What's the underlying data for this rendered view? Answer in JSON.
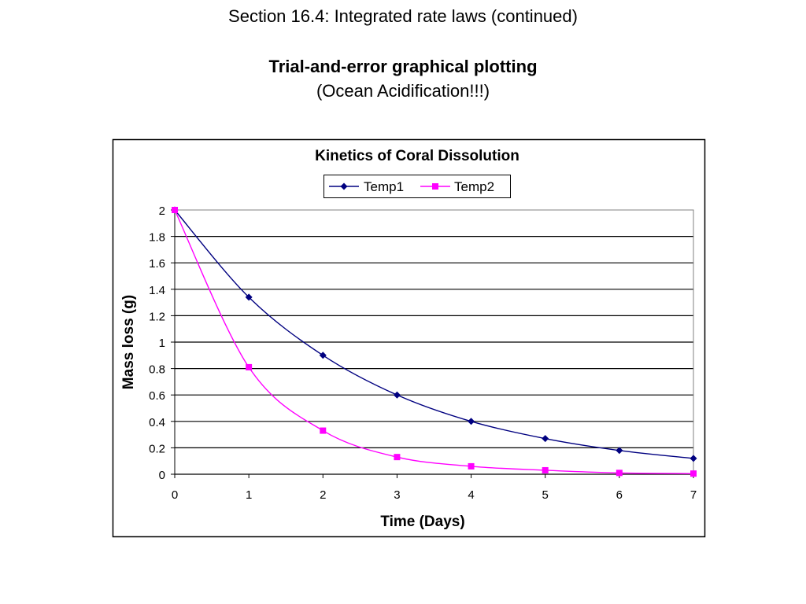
{
  "slide": {
    "title": "Section 16.4:  Integrated rate laws (continued)",
    "subtitle": "Trial-and-error graphical plotting",
    "note": "(Ocean Acidification!!!)"
  },
  "chart_data": {
    "type": "line",
    "title": "Kinetics of Coral Dissolution",
    "xlabel": "Time (Days)",
    "ylabel": "Mass loss (g)",
    "xlim": [
      0,
      7
    ],
    "ylim": [
      0,
      2
    ],
    "x_ticks": [
      "0",
      "1",
      "2",
      "3",
      "4",
      "5",
      "6",
      "7"
    ],
    "y_ticks": [
      "0",
      "0.2",
      "0.4",
      "0.6",
      "0.8",
      "1",
      "1.2",
      "1.4",
      "1.6",
      "1.8",
      "2"
    ],
    "grid": "horizontal",
    "legend_position": "top",
    "x": [
      0,
      1,
      2,
      3,
      4,
      5,
      6,
      7
    ],
    "series": [
      {
        "name": "Temp1",
        "color": "#000080",
        "marker": "diamond",
        "values": [
          2.0,
          1.34,
          0.9,
          0.6,
          0.4,
          0.27,
          0.18,
          0.12
        ]
      },
      {
        "name": "Temp2",
        "color": "#ff00ff",
        "marker": "square",
        "values": [
          2.0,
          0.81,
          0.33,
          0.13,
          0.06,
          0.03,
          0.01,
          0.005
        ]
      }
    ]
  }
}
